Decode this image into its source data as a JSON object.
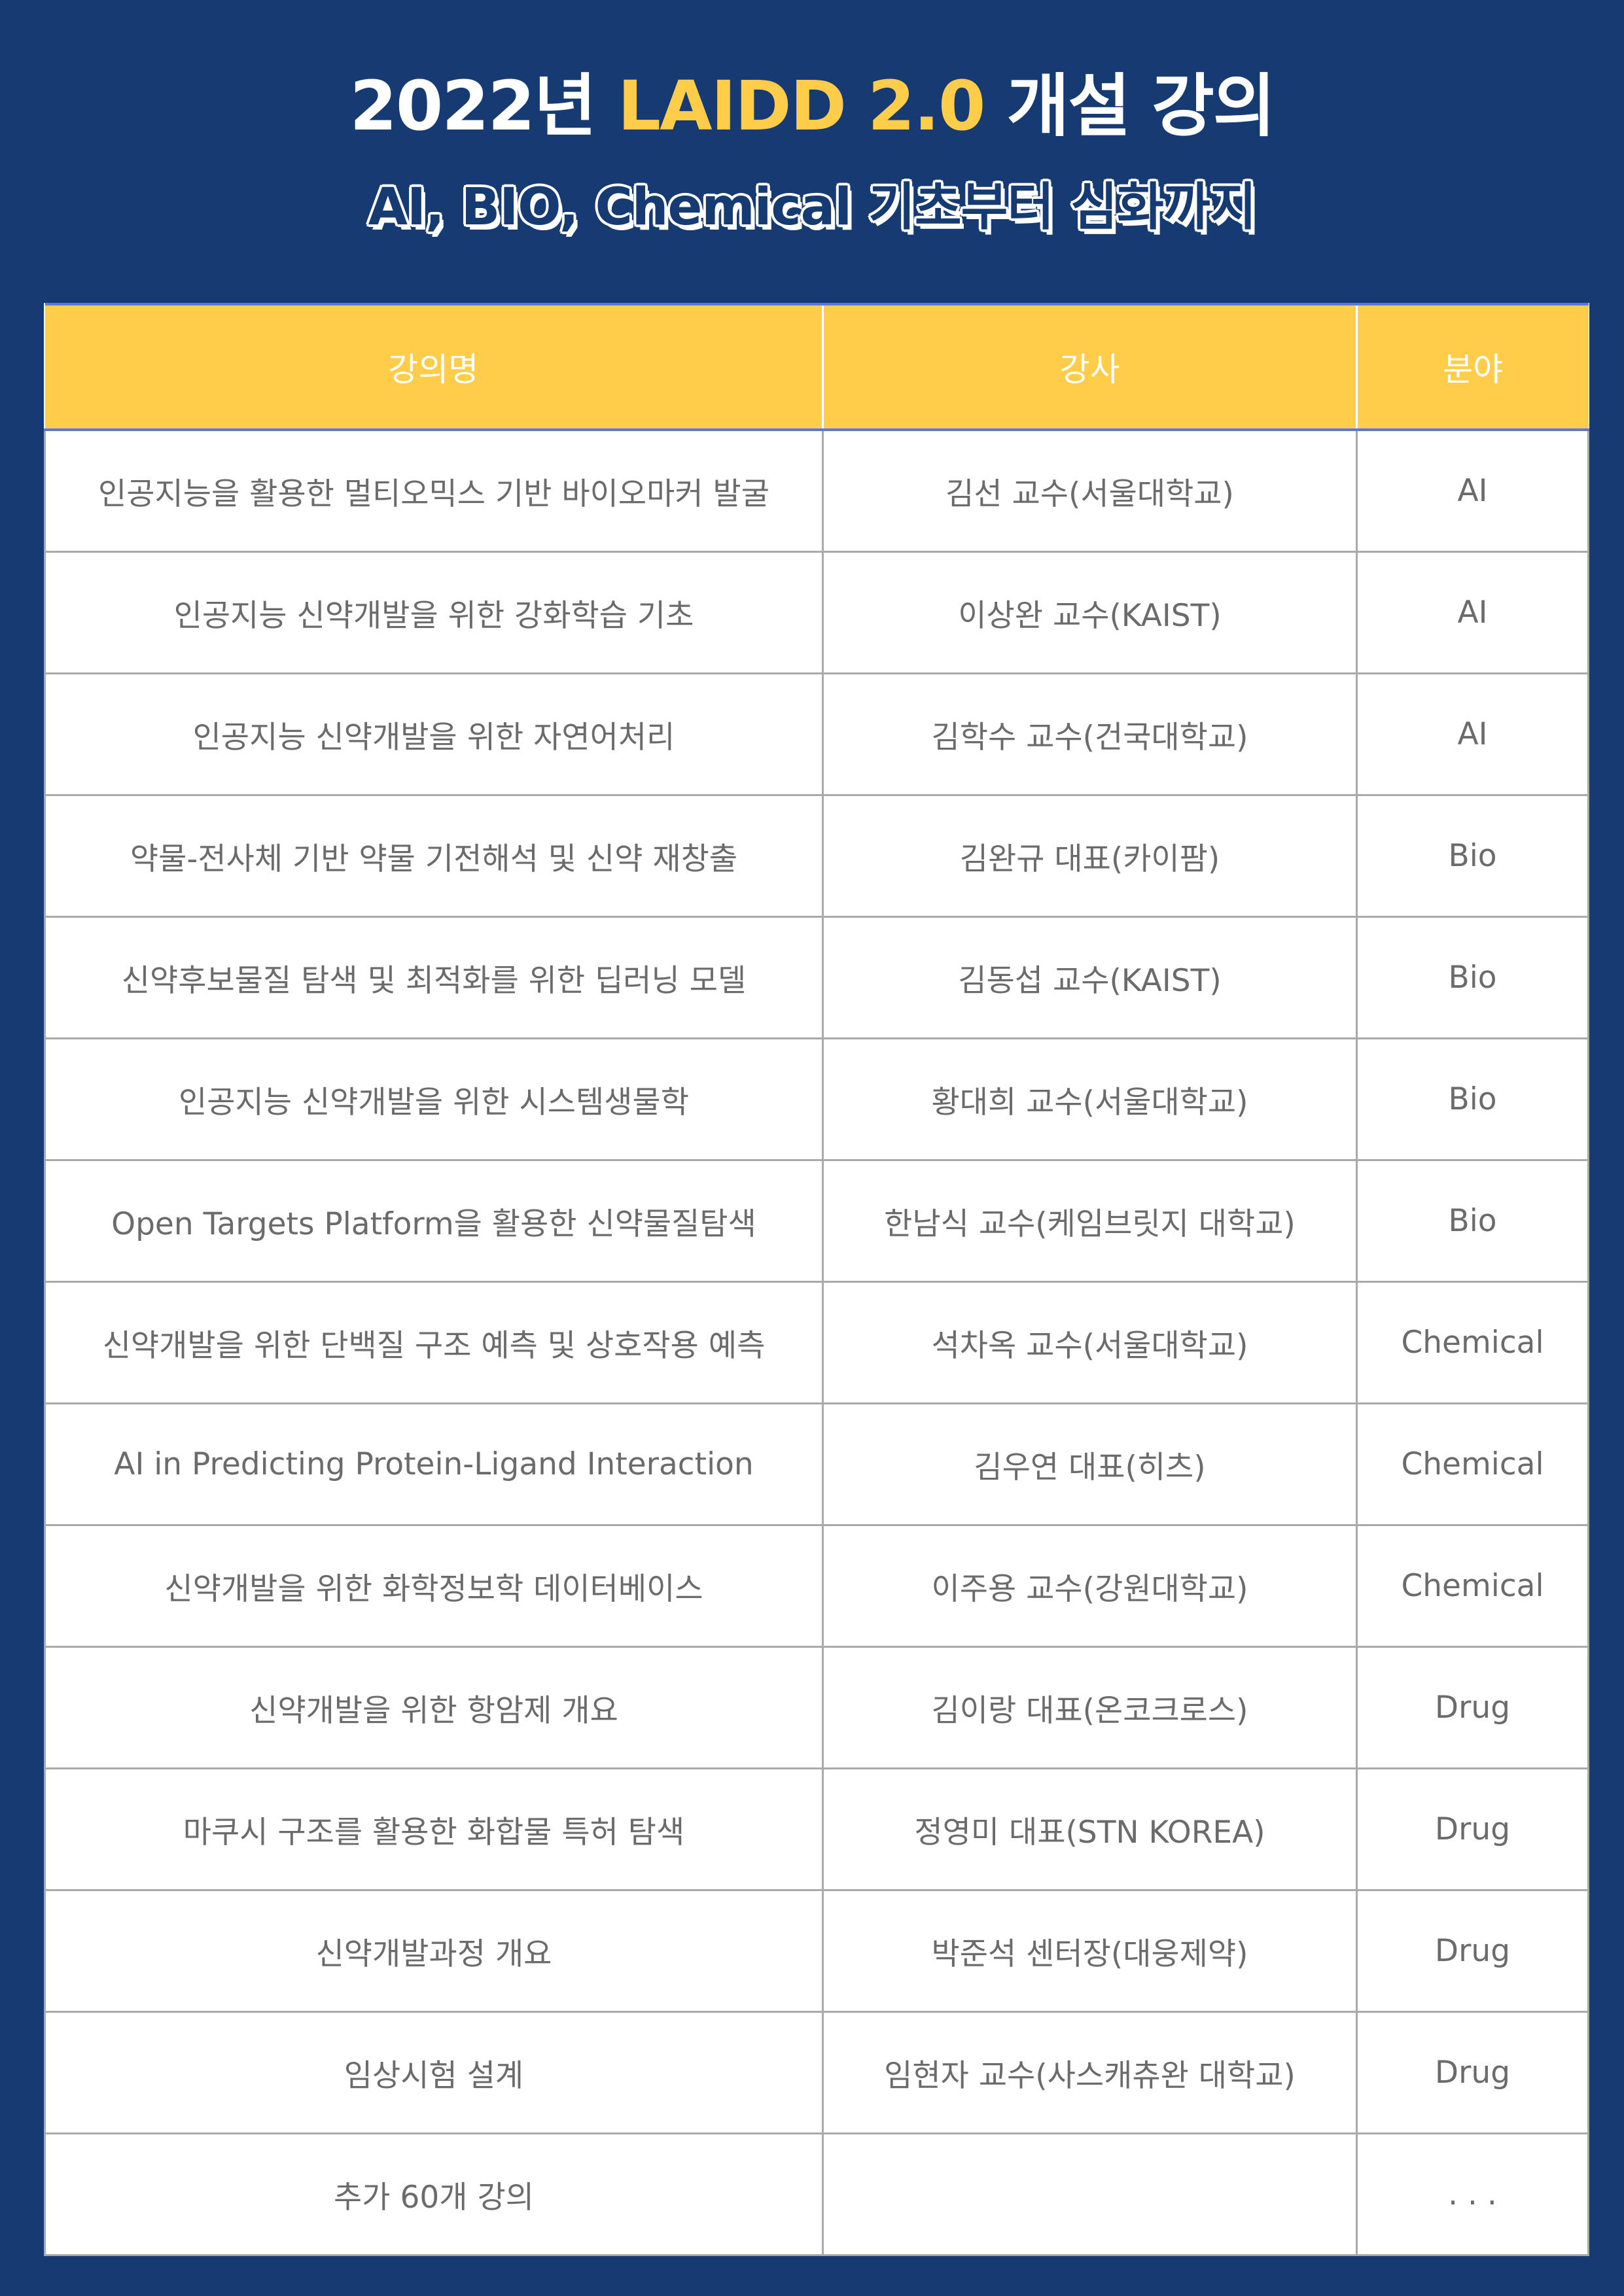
{
  "title": {
    "prefix": "2022년 ",
    "highlight": "LAIDD 2.0",
    "suffix": " 개설 강의"
  },
  "subtitle": "AI, BIO, Chemical 기초부터 심화까지",
  "colors": {
    "background": "#163a72",
    "accent": "#ffcd4a",
    "text": "#6b6b6b"
  },
  "table": {
    "headers": [
      "강의명",
      "강사",
      "분야"
    ],
    "rows": [
      [
        "인공지능을 활용한 멀티오믹스 기반 바이오마커 발굴",
        "김선 교수(서울대학교)",
        "AI"
      ],
      [
        "인공지능 신약개발을 위한 강화학습 기초",
        "이상완 교수(KAIST)",
        "AI"
      ],
      [
        "인공지능 신약개발을 위한 자연어처리",
        "김학수 교수(건국대학교)",
        "AI"
      ],
      [
        "약물-전사체 기반 약물 기전해석 및 신약 재창출",
        "김완규 대표(카이팜)",
        "Bio"
      ],
      [
        "신약후보물질 탐색 및 최적화를 위한 딥러닝 모델",
        "김동섭 교수(KAIST)",
        "Bio"
      ],
      [
        "인공지능 신약개발을 위한 시스템생물학",
        "황대희 교수(서울대학교)",
        "Bio"
      ],
      [
        "Open Targets Platform을 활용한 신약물질탐색",
        "한남식 교수(케임브릿지 대학교)",
        "Bio"
      ],
      [
        "신약개발을 위한 단백질 구조 예측 및 상호작용 예측",
        "석차옥 교수(서울대학교)",
        "Chemical"
      ],
      [
        "AI in Predicting Protein-Ligand Interaction",
        "김우연 대표(히츠)",
        "Chemical"
      ],
      [
        "신약개발을 위한 화학정보학 데이터베이스",
        "이주용 교수(강원대학교)",
        "Chemical"
      ],
      [
        "신약개발을 위한 항암제 개요",
        "김이랑 대표(온코크로스)",
        "Drug"
      ],
      [
        "마쿠시 구조를 활용한 화합물 특허 탐색",
        "정영미 대표(STN KOREA)",
        "Drug"
      ],
      [
        "신약개발과정 개요",
        "박준석 센터장(대웅제약)",
        "Drug"
      ],
      [
        "임상시험 설계",
        "임현자 교수(사스캐츄완 대학교)",
        "Drug"
      ],
      [
        "추가 60개 강의",
        "",
        ". . ."
      ]
    ]
  }
}
